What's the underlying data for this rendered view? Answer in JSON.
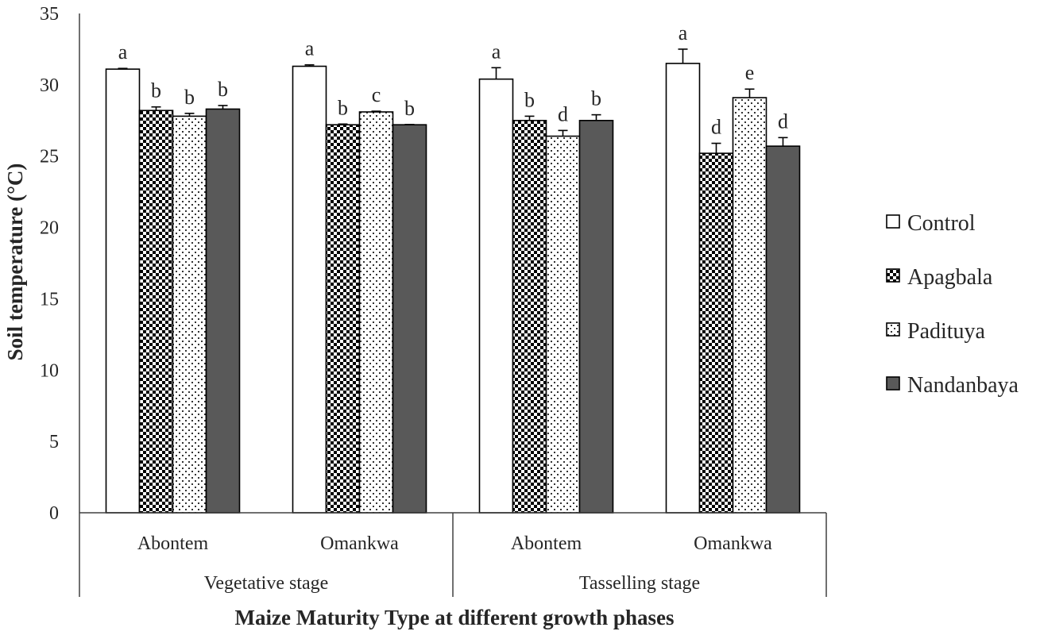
{
  "chart_data": {
    "type": "bar",
    "title": "",
    "ylabel": "Soil temperature (°C)",
    "xlabel": "Maize Maturity Type at different growth phases",
    "ylim": [
      0,
      35
    ],
    "yticks": [
      0,
      5,
      10,
      15,
      20,
      25,
      30,
      35
    ],
    "groups": [
      {
        "label": "Vegetative stage",
        "categories": [
          "Abontem",
          "Omankwa"
        ]
      },
      {
        "label": "Tasselling stage",
        "categories": [
          "Abontem",
          "Omankwa"
        ]
      }
    ],
    "categories": [
      "Abontem",
      "Omankwa",
      "Abontem",
      "Omankwa"
    ],
    "series": [
      {
        "name": "Control",
        "pattern": "white",
        "values": [
          31.1,
          31.3,
          30.4,
          31.5
        ],
        "errors": [
          0.05,
          0.1,
          0.8,
          1.0
        ],
        "letters": [
          "a",
          "a",
          "a",
          "a"
        ]
      },
      {
        "name": "Apagbala",
        "pattern": "checker",
        "values": [
          28.2,
          27.2,
          27.5,
          25.2
        ],
        "errors": [
          0.25,
          0.05,
          0.3,
          0.7
        ],
        "letters": [
          "b",
          "b",
          "b",
          "d"
        ]
      },
      {
        "name": "Padituya",
        "pattern": "dots",
        "values": [
          27.8,
          28.1,
          26.4,
          29.1
        ],
        "errors": [
          0.2,
          0.05,
          0.4,
          0.6
        ],
        "letters": [
          "b",
          "c",
          "d",
          "e"
        ]
      },
      {
        "name": "Nandanbaya",
        "pattern": "solid",
        "values": [
          28.3,
          27.2,
          27.5,
          25.7
        ],
        "errors": [
          0.25,
          0.02,
          0.4,
          0.6
        ],
        "letters": [
          "b",
          "b",
          "b",
          "d"
        ]
      }
    ],
    "legend_position": "right",
    "grid": false
  },
  "colors": {
    "axis": "#404040",
    "bar_outline": "#000000",
    "solid_fill": "#595959",
    "checker_dark": "#000000",
    "checker_light": "#ffffff",
    "dots_color": "#333333"
  }
}
